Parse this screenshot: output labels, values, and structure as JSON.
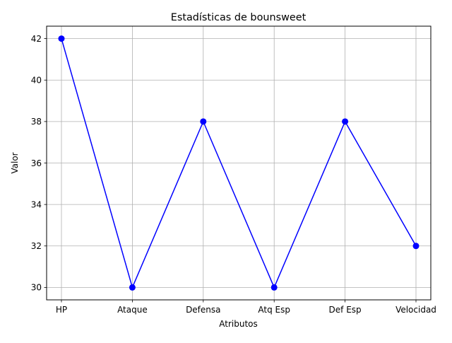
{
  "chart_data": {
    "type": "line",
    "title": "Estadísticas de bounsweet",
    "xlabel": "Atributos",
    "ylabel": "Valor",
    "categories": [
      "HP",
      "Ataque",
      "Defensa",
      "Atq Esp",
      "Def Esp",
      "Velocidad"
    ],
    "series": [
      {
        "values": [
          42,
          30,
          38,
          30,
          38,
          32
        ]
      }
    ],
    "ylim": [
      29.4,
      42.6
    ],
    "yticks": [
      30,
      32,
      34,
      36,
      38,
      40,
      42
    ],
    "grid": true,
    "marker": "circle",
    "line_color": "#0000ff",
    "grid_color": "#b0b0b0"
  }
}
